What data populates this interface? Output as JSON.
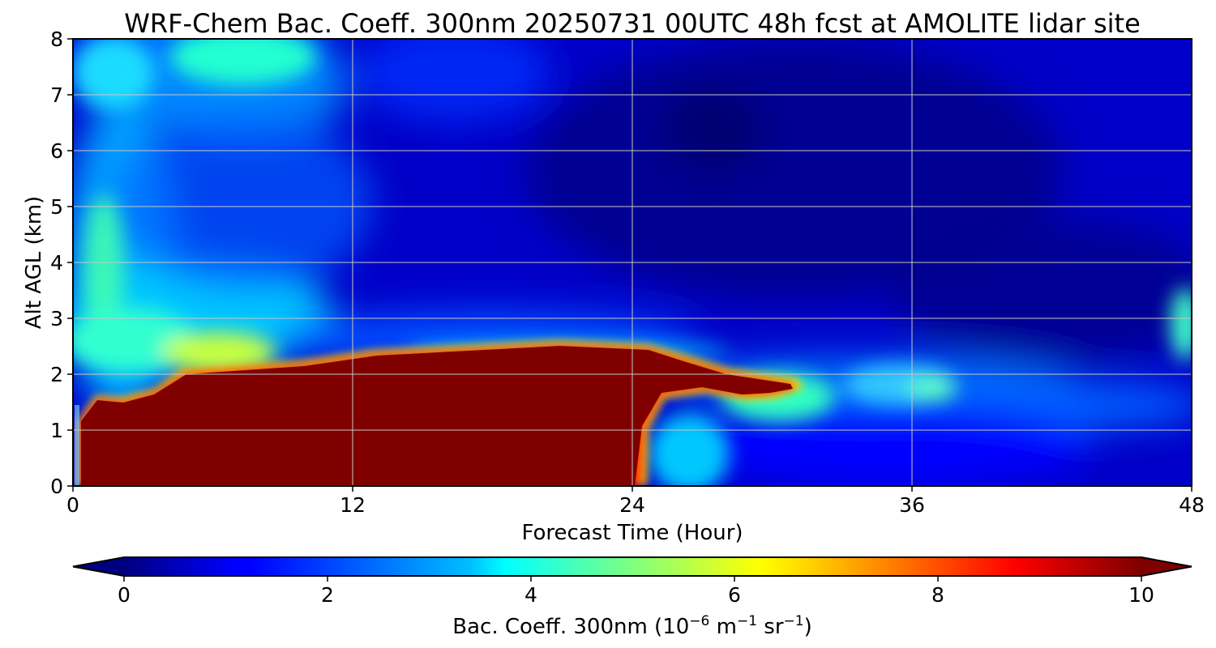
{
  "chart_data": {
    "type": "heatmap",
    "title": "WRF-Chem Bac. Coeff. 300nm  20250731 00UTC 48h fcst at AMOLITE lidar site",
    "xlabel": "Forecast Time (Hour)",
    "ylabel": "Alt AGL (km)",
    "xlim": [
      0,
      48
    ],
    "ylim": [
      0,
      8
    ],
    "xticks": [
      "0",
      "12",
      "24",
      "36",
      "48"
    ],
    "yticks": [
      "0",
      "1",
      "2",
      "3",
      "4",
      "5",
      "6",
      "7",
      "8"
    ],
    "grid": true,
    "colormap": "jet",
    "colorbar": {
      "label_main": "Bac. Coeff. 300nm  (10",
      "label_exp1": "−6",
      "label_mid1": " m",
      "label_exp2": "−1",
      "label_mid2": " sr",
      "label_exp3": "−1",
      "label_end": ")",
      "min": 0,
      "max": 10,
      "ticks": [
        "0",
        "2",
        "4",
        "6",
        "8",
        "10"
      ],
      "extend": "both",
      "orientation": "horizontal"
    },
    "features": [
      {
        "name": "saturated boundary-layer aerosol",
        "value": 10,
        "x_range": [
          0,
          30
        ],
        "top_km": [
          1.2,
          1.6,
          2.1,
          2.3,
          2.5,
          2.0
        ]
      },
      {
        "name": "elevated aerosol layer",
        "value": 3.5,
        "x_range": [
          0,
          10
        ],
        "y_range": [
          2,
          5
        ]
      },
      {
        "name": "upper plume",
        "value": 4,
        "x_range": [
          4,
          12
        ],
        "y_range": [
          7,
          8
        ]
      },
      {
        "name": "background",
        "value": 1,
        "x_range": [
          12,
          48
        ],
        "y_range": [
          2.5,
          8
        ]
      }
    ]
  }
}
